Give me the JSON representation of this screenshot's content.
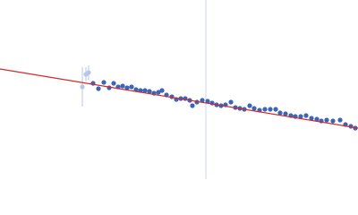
{
  "chart_data": {
    "type": "scatter",
    "xlim": [
      0,
      400
    ],
    "ylim": [
      0,
      200
    ],
    "vline": 230,
    "vline_color": "#c8d4ec",
    "series": [
      {
        "type": "scatter",
        "color": "#b7c6e6",
        "x": [
          92,
          96,
          99
        ],
        "values": [
          103,
          117,
          119
        ],
        "errors": [
          22,
          8,
          8
        ]
      },
      {
        "type": "scatter",
        "color": "#3a66b8",
        "x": [
          104,
          110,
          116,
          122,
          127,
          132,
          137,
          142,
          147,
          152,
          157,
          162,
          167,
          172,
          177,
          181,
          186,
          192,
          197,
          202,
          207,
          212,
          215,
          220,
          226,
          232,
          237,
          242,
          247,
          252,
          258,
          263,
          268,
          273,
          279,
          284,
          290,
          296,
          302,
          308,
          313,
          319,
          325,
          330,
          336,
          342,
          348,
          354,
          359,
          365,
          372,
          380,
          386,
          392,
          397
        ],
        "values": [
          107,
          101,
          108,
          102,
          107,
          103,
          104,
          102,
          103,
          100,
          99,
          99,
          98,
          96,
          97,
          99,
          94,
          92,
          89,
          90,
          90,
          88,
          82,
          86,
          88,
          87,
          85,
          83,
          82,
          83,
          86,
          80,
          79,
          78,
          82,
          79,
          77,
          78,
          78,
          78,
          74,
          73,
          71,
          70,
          70,
          71,
          68,
          67,
          65,
          66,
          65,
          66,
          61,
          59,
          57
        ]
      },
      {
        "type": "line",
        "color": "#d62728",
        "x": [
          0,
          400
        ],
        "values": [
          123,
          57
        ]
      }
    ]
  }
}
